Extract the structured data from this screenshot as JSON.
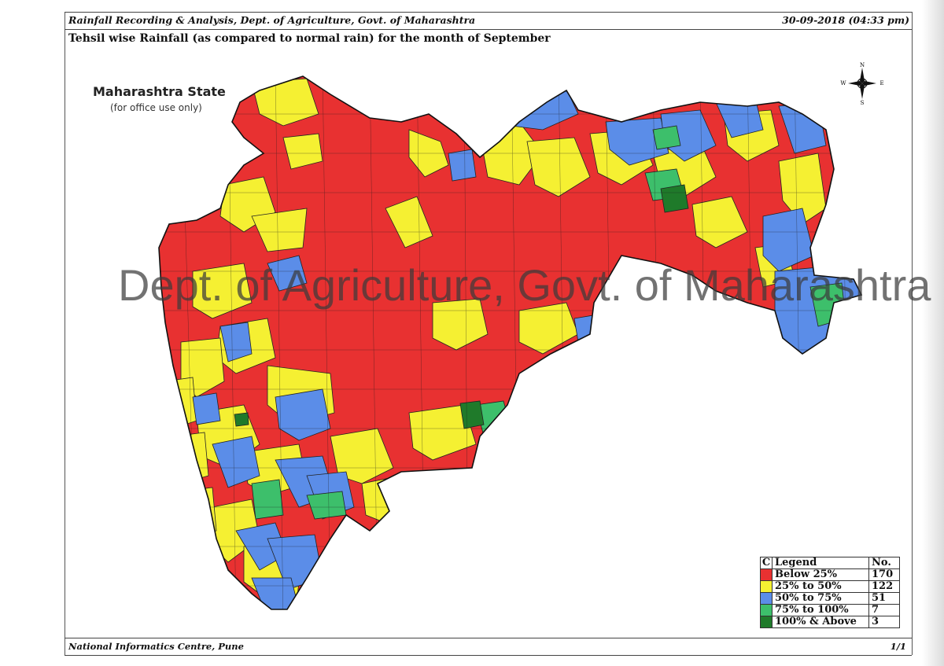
{
  "header": {
    "left": "Rainfall Recording & Analysis, Dept. of Agriculture, Govt. of Maharashtra",
    "right": "30-09-2018 (04:33 pm)"
  },
  "subtitle": "Tehsil wise Rainfall (as compared to normal rain) for the month of September",
  "map": {
    "title": "Maharashtra State",
    "note": "(for office use only)",
    "watermark": "Dept. of Agriculture, Govt. of Maharashtra",
    "compass": {
      "n": "N",
      "s": "S",
      "e": "E",
      "w": "W"
    }
  },
  "legend": {
    "col_c": "C",
    "col_legend": "Legend",
    "col_no": "No.",
    "items": [
      {
        "label": "Below 25%",
        "count": "170",
        "color": "#e83131"
      },
      {
        "label": "25% to 50%",
        "count": "122",
        "color": "#f5f032"
      },
      {
        "label": "50% to 75%",
        "count": "51",
        "color": "#5b8de8"
      },
      {
        "label": "75% to 100%",
        "count": "7",
        "color": "#3dbf6b"
      },
      {
        "label": "100% & Above",
        "count": "3",
        "color": "#1f7a2a"
      }
    ]
  },
  "footer": {
    "left": "National Informatics Centre, Pune",
    "right": "1/1"
  }
}
